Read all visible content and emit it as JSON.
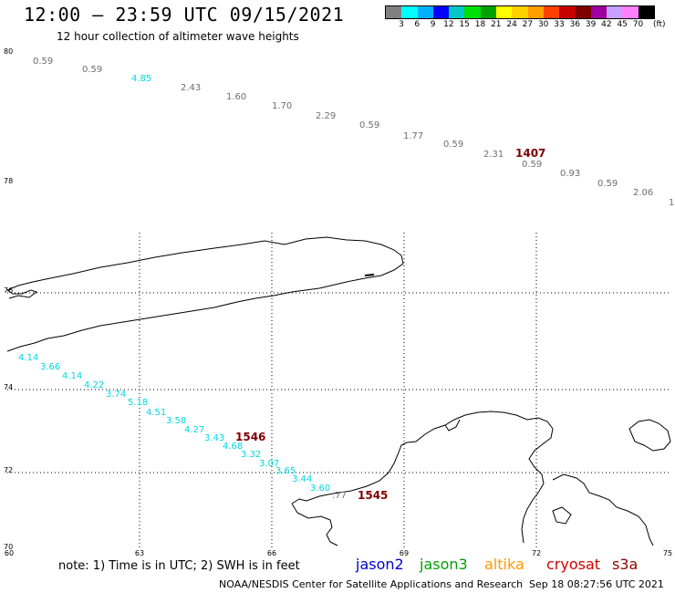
{
  "title": "12:00 — 23:59 UTC 09/15/2021",
  "subtitle": "12 hour collection of altimeter wave heights",
  "legend": {
    "swatches": [
      "#808080",
      "#00ffff",
      "#00b0ff",
      "#0000ff",
      "#00c8c8",
      "#00e000",
      "#00a000",
      "#ffff00",
      "#ffd000",
      "#ffa000",
      "#ff4000",
      "#c80000",
      "#800000",
      "#a000a0",
      "#c8a0ff",
      "#ff80ff",
      "#000000"
    ],
    "labels": [
      "3",
      "6",
      "9",
      "12",
      "15",
      "18",
      "21",
      "24",
      "27",
      "30",
      "33",
      "36",
      "39",
      "42",
      "45",
      "70"
    ],
    "unit": "(ft)"
  },
  "axes": {
    "lon_labels": [
      "60",
      "63",
      "66",
      "69",
      "72",
      "75"
    ],
    "lat_labels": [
      "80",
      "78",
      "76",
      "74",
      "72",
      "70"
    ]
  },
  "track_north": {
    "color": "#6e6e6e",
    "values": [
      "0.59",
      "0.59",
      "4.85",
      "2.43",
      "1.60",
      "1.70",
      "2.29",
      "0.59",
      "1.77",
      "0.59",
      "2.31",
      "0.59",
      "0.93",
      "0.59",
      "2.06",
      "1"
    ],
    "highlight_index": 2,
    "highlight_color": "#00d8e0",
    "time_label": "1407"
  },
  "track_south": {
    "color": "#00d8e0",
    "values": [
      "4.14",
      "3.66",
      "4.14",
      "4.22",
      "3.74",
      "5.18",
      "4.51",
      "3.58",
      "4.27",
      "3.43",
      "4.68",
      "3.32",
      "3.07",
      "3.65",
      "3.44",
      "3.60",
      ".77"
    ],
    "time_labels": [
      "1546",
      "1545"
    ]
  },
  "time_label_color": "#800000",
  "note": "note:  1) Time is in UTC;  2) SWH is in feet",
  "satellites": [
    {
      "name": "jason2",
      "color": "#0000d0"
    },
    {
      "name": "jason3",
      "color": "#00a000"
    },
    {
      "name": "altika",
      "color": "#ff9900"
    },
    {
      "name": "cryosat",
      "color": "#d00000"
    },
    {
      "name": "s3a",
      "color": "#900000"
    }
  ],
  "footer_left": "NOAA/NESDIS Center for Satellite Applications and Research",
  "footer_right": "Sep 18 08:27:56 UTC 2021"
}
